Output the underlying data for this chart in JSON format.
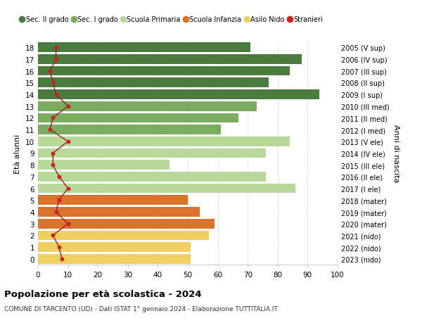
{
  "ages": [
    18,
    17,
    16,
    15,
    14,
    13,
    12,
    11,
    10,
    9,
    8,
    7,
    6,
    5,
    4,
    3,
    2,
    1,
    0
  ],
  "right_labels": [
    "2005 (V sup)",
    "2006 (IV sup)",
    "2007 (III sup)",
    "2008 (II sup)",
    "2009 (I sup)",
    "2010 (III med)",
    "2011 (II med)",
    "2012 (I med)",
    "2013 (V ele)",
    "2014 (IV ele)",
    "2015 (III ele)",
    "2016 (II ele)",
    "2017 (I ele)",
    "2018 (mater)",
    "2019 (mater)",
    "2020 (mater)",
    "2021 (nido)",
    "2022 (nido)",
    "2023 (nido)"
  ],
  "bar_values": [
    71,
    88,
    84,
    77,
    94,
    73,
    67,
    61,
    84,
    76,
    44,
    76,
    86,
    50,
    54,
    59,
    57,
    51,
    51
  ],
  "bar_colors": [
    "#4a7c3f",
    "#4a7c3f",
    "#4a7c3f",
    "#4a7c3f",
    "#4a7c3f",
    "#7aab5e",
    "#7aab5e",
    "#7aab5e",
    "#b8d89a",
    "#b8d89a",
    "#b8d89a",
    "#b8d89a",
    "#b8d89a",
    "#d9722a",
    "#d9722a",
    "#d9722a",
    "#f0d060",
    "#f0d060",
    "#f0d060"
  ],
  "stranieri_values": [
    6,
    6,
    4,
    5,
    6,
    10,
    5,
    4,
    10,
    5,
    5,
    7,
    10,
    7,
    6,
    10,
    5,
    7,
    8
  ],
  "legend_labels": [
    "Sec. II grado",
    "Sec. I grado",
    "Scuola Primaria",
    "Scuola Infanzia",
    "Asilo Nido",
    "Stranieri"
  ],
  "legend_colors": [
    "#4a7c3f",
    "#7aab5e",
    "#b8d89a",
    "#d9722a",
    "#f0d060",
    "#cc2222"
  ],
  "ylabel": "Età alunni",
  "right_ylabel": "Anni di nascita",
  "title": "Popolazione per età scolastica - 2024",
  "subtitle": "COMUNE DI TARCENTO (UD) - Dati ISTAT 1° gennaio 2024 - Elaborazione TUTTITALIA.IT",
  "xlim": [
    0,
    100
  ],
  "bg_color": "#ffffff",
  "grid_color": "#cccccc",
  "bar_height": 0.82
}
